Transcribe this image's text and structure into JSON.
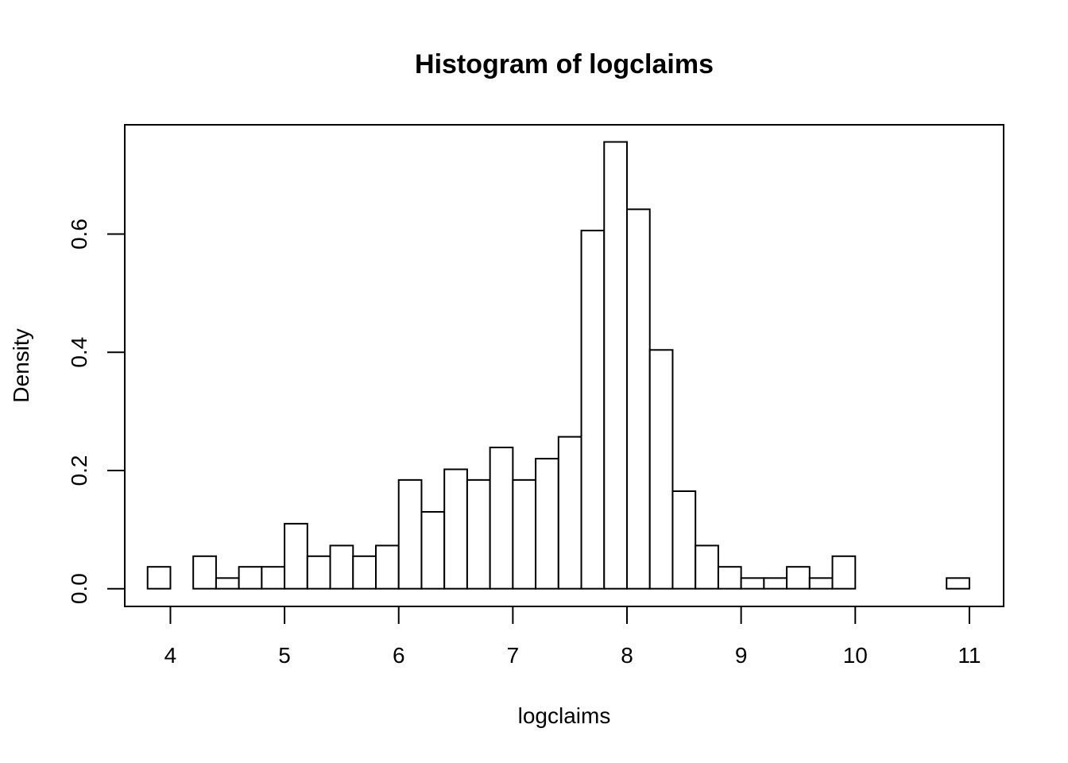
{
  "chart_data": {
    "type": "bar",
    "title": "Histogram of logclaims",
    "xlabel": "logclaims",
    "ylabel": "Density",
    "xlim": [
      3.6,
      11.3
    ],
    "ylim": [
      -0.03,
      0.785
    ],
    "x_ticks": [
      4,
      5,
      6,
      7,
      8,
      9,
      10,
      11
    ],
    "x_tick_labels": [
      "4",
      "5",
      "6",
      "7",
      "8",
      "9",
      "10",
      "11"
    ],
    "y_ticks": [
      0.0,
      0.2,
      0.4,
      0.6
    ],
    "y_tick_labels": [
      "0.0",
      "0.2",
      "0.4",
      "0.6"
    ],
    "grid": false,
    "bin_width": 0.2,
    "bin_start": 3.8,
    "values": [
      0.037,
      0.0,
      0.055,
      0.018,
      0.037,
      0.037,
      0.11,
      0.055,
      0.073,
      0.055,
      0.073,
      0.184,
      0.13,
      0.202,
      0.184,
      0.239,
      0.184,
      0.22,
      0.257,
      0.606,
      0.756,
      0.642,
      0.404,
      0.165,
      0.073,
      0.037,
      0.018,
      0.018,
      0.037,
      0.018,
      0.055,
      0.0,
      0.0,
      0.0,
      0.0,
      0.018
    ]
  }
}
